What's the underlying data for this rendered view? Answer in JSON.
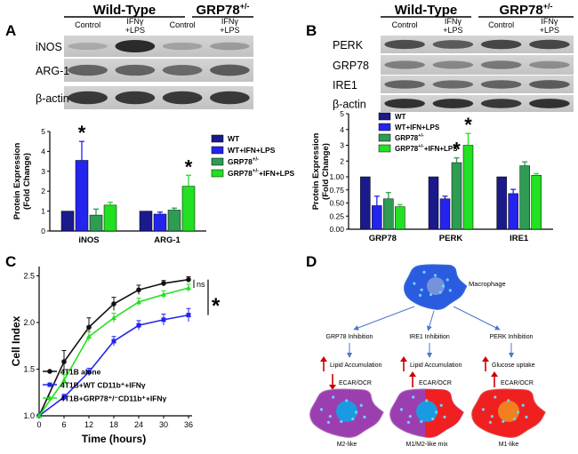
{
  "panels": {
    "A": {
      "letter": "A",
      "group_headers": [
        "Wild-Type",
        "GRP78+/-"
      ],
      "lane_labels": [
        "Control",
        "IFNγ",
        "+LPS",
        "Control",
        "IFNγ",
        "+LPS"
      ],
      "blot_labels": [
        "iNOS",
        "ARG-1",
        "β-actin"
      ]
    },
    "B": {
      "letter": "B",
      "group_headers": [
        "Wild-Type",
        "GRP78+/-"
      ],
      "lane_labels": [
        "Control",
        "IFNγ",
        "+LPS",
        "Control",
        "IFNγ",
        "+LPS"
      ],
      "blot_labels": [
        "PERK",
        "GRP78",
        "IRE1",
        "β-actin"
      ]
    },
    "C": {
      "letter": "C"
    },
    "D": {
      "letter": "D",
      "cell_label": "Macrophage",
      "branches": [
        {
          "inhibition": "GRP78 Inhibition",
          "effect": "Lipid Accumulation",
          "ecar": "ECAR/OCR",
          "result": "M2-like"
        },
        {
          "inhibition": "IRE1 Inhibition",
          "effect": "Lipid Accumulation",
          "ecar": "ECAR/OCR",
          "result": "M1/M2-like mix"
        },
        {
          "inhibition": "PERK Inhibition",
          "effect": "Glucose uptake",
          "ecar": "ECAR/OCR",
          "result": "M1-like"
        }
      ]
    }
  },
  "colors": {
    "wt": "#1a1a8c",
    "wt_stim": "#2424ee",
    "grp": "#2e9c52",
    "grp_stim": "#22e022",
    "black": "#111111",
    "red_arrow": "#cc0000",
    "cell_blue": "#2b5ce0",
    "cell_purple": "#9b3fb0",
    "cell_red": "#f02020",
    "nucleus_blue": "#1a9ae0",
    "nucleus_orange": "#f08020"
  },
  "chart_data": [
    {
      "panel": "A",
      "type": "bar",
      "categories": [
        "iNOS",
        "ARG-1"
      ],
      "ylabel": "Protein Expression (Fold Change)",
      "ylim": [
        0,
        5
      ],
      "yticks": [
        "0",
        "1",
        "2",
        "3",
        "4",
        "5"
      ],
      "legend_position": "right",
      "series": [
        {
          "name": "WT",
          "values": [
            1.0,
            1.0
          ],
          "errors": [
            0,
            0
          ]
        },
        {
          "name": "WT+IFN+LPS",
          "values": [
            3.55,
            0.85
          ],
          "errors": [
            0.95,
            0.1
          ]
        },
        {
          "name": "GRP78+/-",
          "values": [
            0.8,
            1.05
          ],
          "errors": [
            0.3,
            0.1
          ]
        },
        {
          "name": "GRP78+/-+IFN+LPS",
          "values": [
            1.3,
            2.25
          ],
          "errors": [
            0.15,
            0.55
          ]
        }
      ],
      "annotations": [
        {
          "text": "*",
          "category": "iNOS",
          "series": 1
        },
        {
          "text": "*",
          "category": "ARG-1",
          "series": 3
        }
      ]
    },
    {
      "panel": "B",
      "type": "bar",
      "categories": [
        "GRP78",
        "PERK",
        "IRE1"
      ],
      "ylabel": "Protein Expression (Fold Change)",
      "ylim": [
        0,
        5
      ],
      "yticks": [
        "0.00",
        "0.25",
        "0.50",
        "0.75",
        "1.00",
        "2",
        "3",
        "4",
        "5"
      ],
      "legend_position": "top-left",
      "series": [
        {
          "name": "WT",
          "values": [
            1.0,
            1.0,
            1.0
          ],
          "errors": [
            0,
            0,
            0
          ]
        },
        {
          "name": "WT+IFN+LPS",
          "values": [
            0.45,
            0.58,
            0.68
          ],
          "errors": [
            0.18,
            0.05,
            0.08
          ]
        },
        {
          "name": "GRP78+/-",
          "values": [
            0.58,
            1.9,
            1.7
          ],
          "errors": [
            0.12,
            0.3,
            0.25
          ]
        },
        {
          "name": "GRP78+/-+IFN+LPS",
          "values": [
            0.43,
            3.0,
            1.1
          ],
          "errors": [
            0.04,
            0.75,
            0.1
          ]
        }
      ],
      "annotations": [
        {
          "text": "*",
          "category": "PERK",
          "series": 2
        },
        {
          "text": "*",
          "category": "PERK",
          "series": 3
        }
      ]
    },
    {
      "panel": "C",
      "type": "line",
      "xlabel": "Time (hours)",
      "ylabel": "Cell Index",
      "x": [
        0,
        6,
        12,
        18,
        24,
        30,
        36
      ],
      "xticks": [
        "0",
        "6",
        "12",
        "18",
        "24",
        "30",
        "36"
      ],
      "yticks": [
        "1.0",
        "1.5",
        "2.0",
        "2.5"
      ],
      "xlim": [
        0,
        36
      ],
      "ylim": [
        1.0,
        2.5
      ],
      "legend_position": "bottom-left",
      "series": [
        {
          "name": "4T1B alone",
          "values": [
            1.0,
            1.58,
            1.95,
            2.2,
            2.35,
            2.42,
            2.46
          ],
          "errors": [
            0,
            0.12,
            0.1,
            0.07,
            0.05,
            0.03,
            0.03
          ]
        },
        {
          "name": "4T1B+WT CD11b⁺+IFNγ",
          "values": [
            1.0,
            1.2,
            1.47,
            1.8,
            1.97,
            2.03,
            2.08
          ],
          "errors": [
            0,
            0.03,
            0.04,
            0.05,
            0.05,
            0.06,
            0.07
          ]
        },
        {
          "name": "4T1B+GRP78⁺/⁻CD11b⁺+IFNγ",
          "values": [
            1.0,
            1.38,
            1.85,
            2.05,
            2.22,
            2.3,
            2.37
          ],
          "errors": [
            0,
            0.06,
            0.05,
            0.05,
            0.04,
            0.04,
            0.04
          ]
        }
      ],
      "annotations": [
        {
          "text": "ns"
        },
        {
          "text": "*"
        }
      ]
    }
  ]
}
